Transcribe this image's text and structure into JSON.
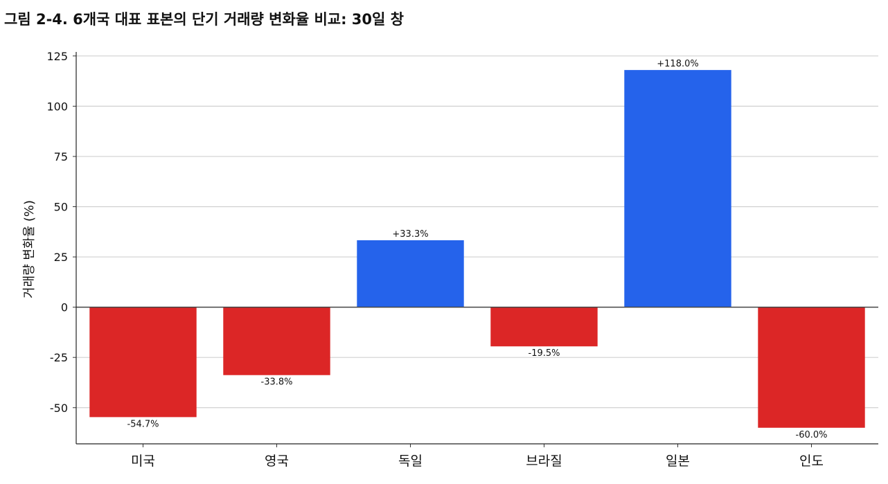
{
  "chart_data": {
    "type": "bar",
    "title": "그림 2-4. 6개국 대표 표본의 단기 거래량 변화율 비교: 30일 창",
    "xlabel": "",
    "ylabel": "거래량 변화율 (%)",
    "categories": [
      "미국",
      "영국",
      "독일",
      "브라질",
      "일본",
      "인도"
    ],
    "values": [
      -54.7,
      -33.8,
      33.3,
      -19.5,
      118.0,
      -60.0
    ],
    "data_labels": [
      "-54.7%",
      "-33.8%",
      "+33.3%",
      "-19.5%",
      "+118.0%",
      "-60.0%"
    ],
    "yticks": [
      -50,
      -25,
      0,
      25,
      50,
      75,
      100,
      125
    ],
    "ytick_labels": [
      "-50",
      "-25",
      "0",
      "25",
      "50",
      "75",
      "100",
      "125"
    ],
    "ylim": [
      -68,
      127
    ],
    "grid": "horizontal",
    "zero_line": true,
    "colors": {
      "positive": "#2563eb",
      "negative": "#dc2626",
      "grid": "#d0d0d0",
      "zero": "#444444"
    }
  }
}
